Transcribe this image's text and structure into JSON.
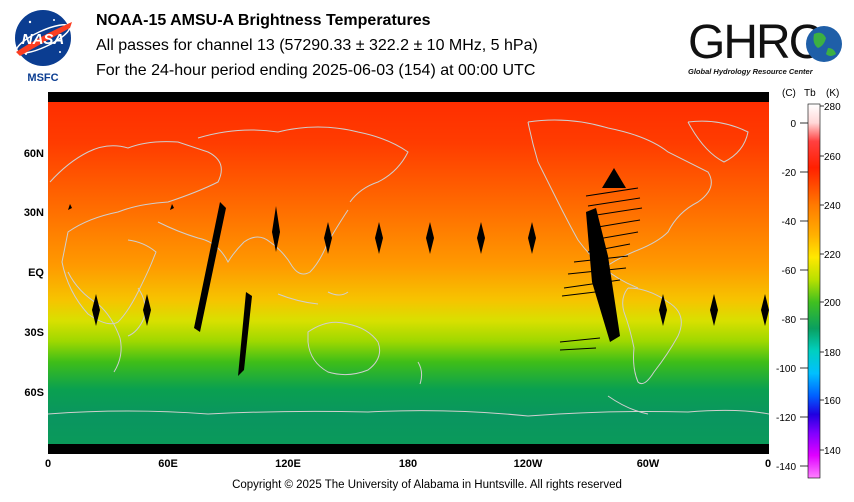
{
  "header": {
    "nasa_label": "NASA",
    "msfc_label": "MSFC",
    "title": "NOAA-15 AMSU-A Brightness Temperatures",
    "subtitle": "All passes for channel 13 (57290.33 ± 322.2 ± 10 MHz, 5 hPa)",
    "period": "For the 24-hour period ending 2025-06-03 (154) at 00:00 UTC"
  },
  "ghrc": {
    "logo_text": "GHRC",
    "tagline": "Global Hydrology Resource Center"
  },
  "map": {
    "lat_labels": [
      "60N",
      "30N",
      "EQ",
      "30S",
      "60S"
    ],
    "lon_labels": [
      "0",
      "60E",
      "120E",
      "180",
      "120W",
      "60W",
      "0"
    ]
  },
  "scale": {
    "unit_c": "(C)",
    "unit_tb": "Tb",
    "unit_k": "(K)",
    "celsius_ticks": [
      "0",
      "-20",
      "-40",
      "-60",
      "-80",
      "-100",
      "-120",
      "-140"
    ],
    "kelvin_ticks": [
      "280",
      "260",
      "240",
      "220",
      "200",
      "180",
      "160",
      "140"
    ]
  },
  "footer": {
    "copyright": "Copyright © 2025 The University of Alabama in Huntsville.  All rights reserved"
  },
  "colors": {
    "ocean_blue": "#1f5fa8",
    "map_orange": "#ff8a00",
    "map_green": "#0a9a5a",
    "coastline": "#c8c8c8"
  }
}
